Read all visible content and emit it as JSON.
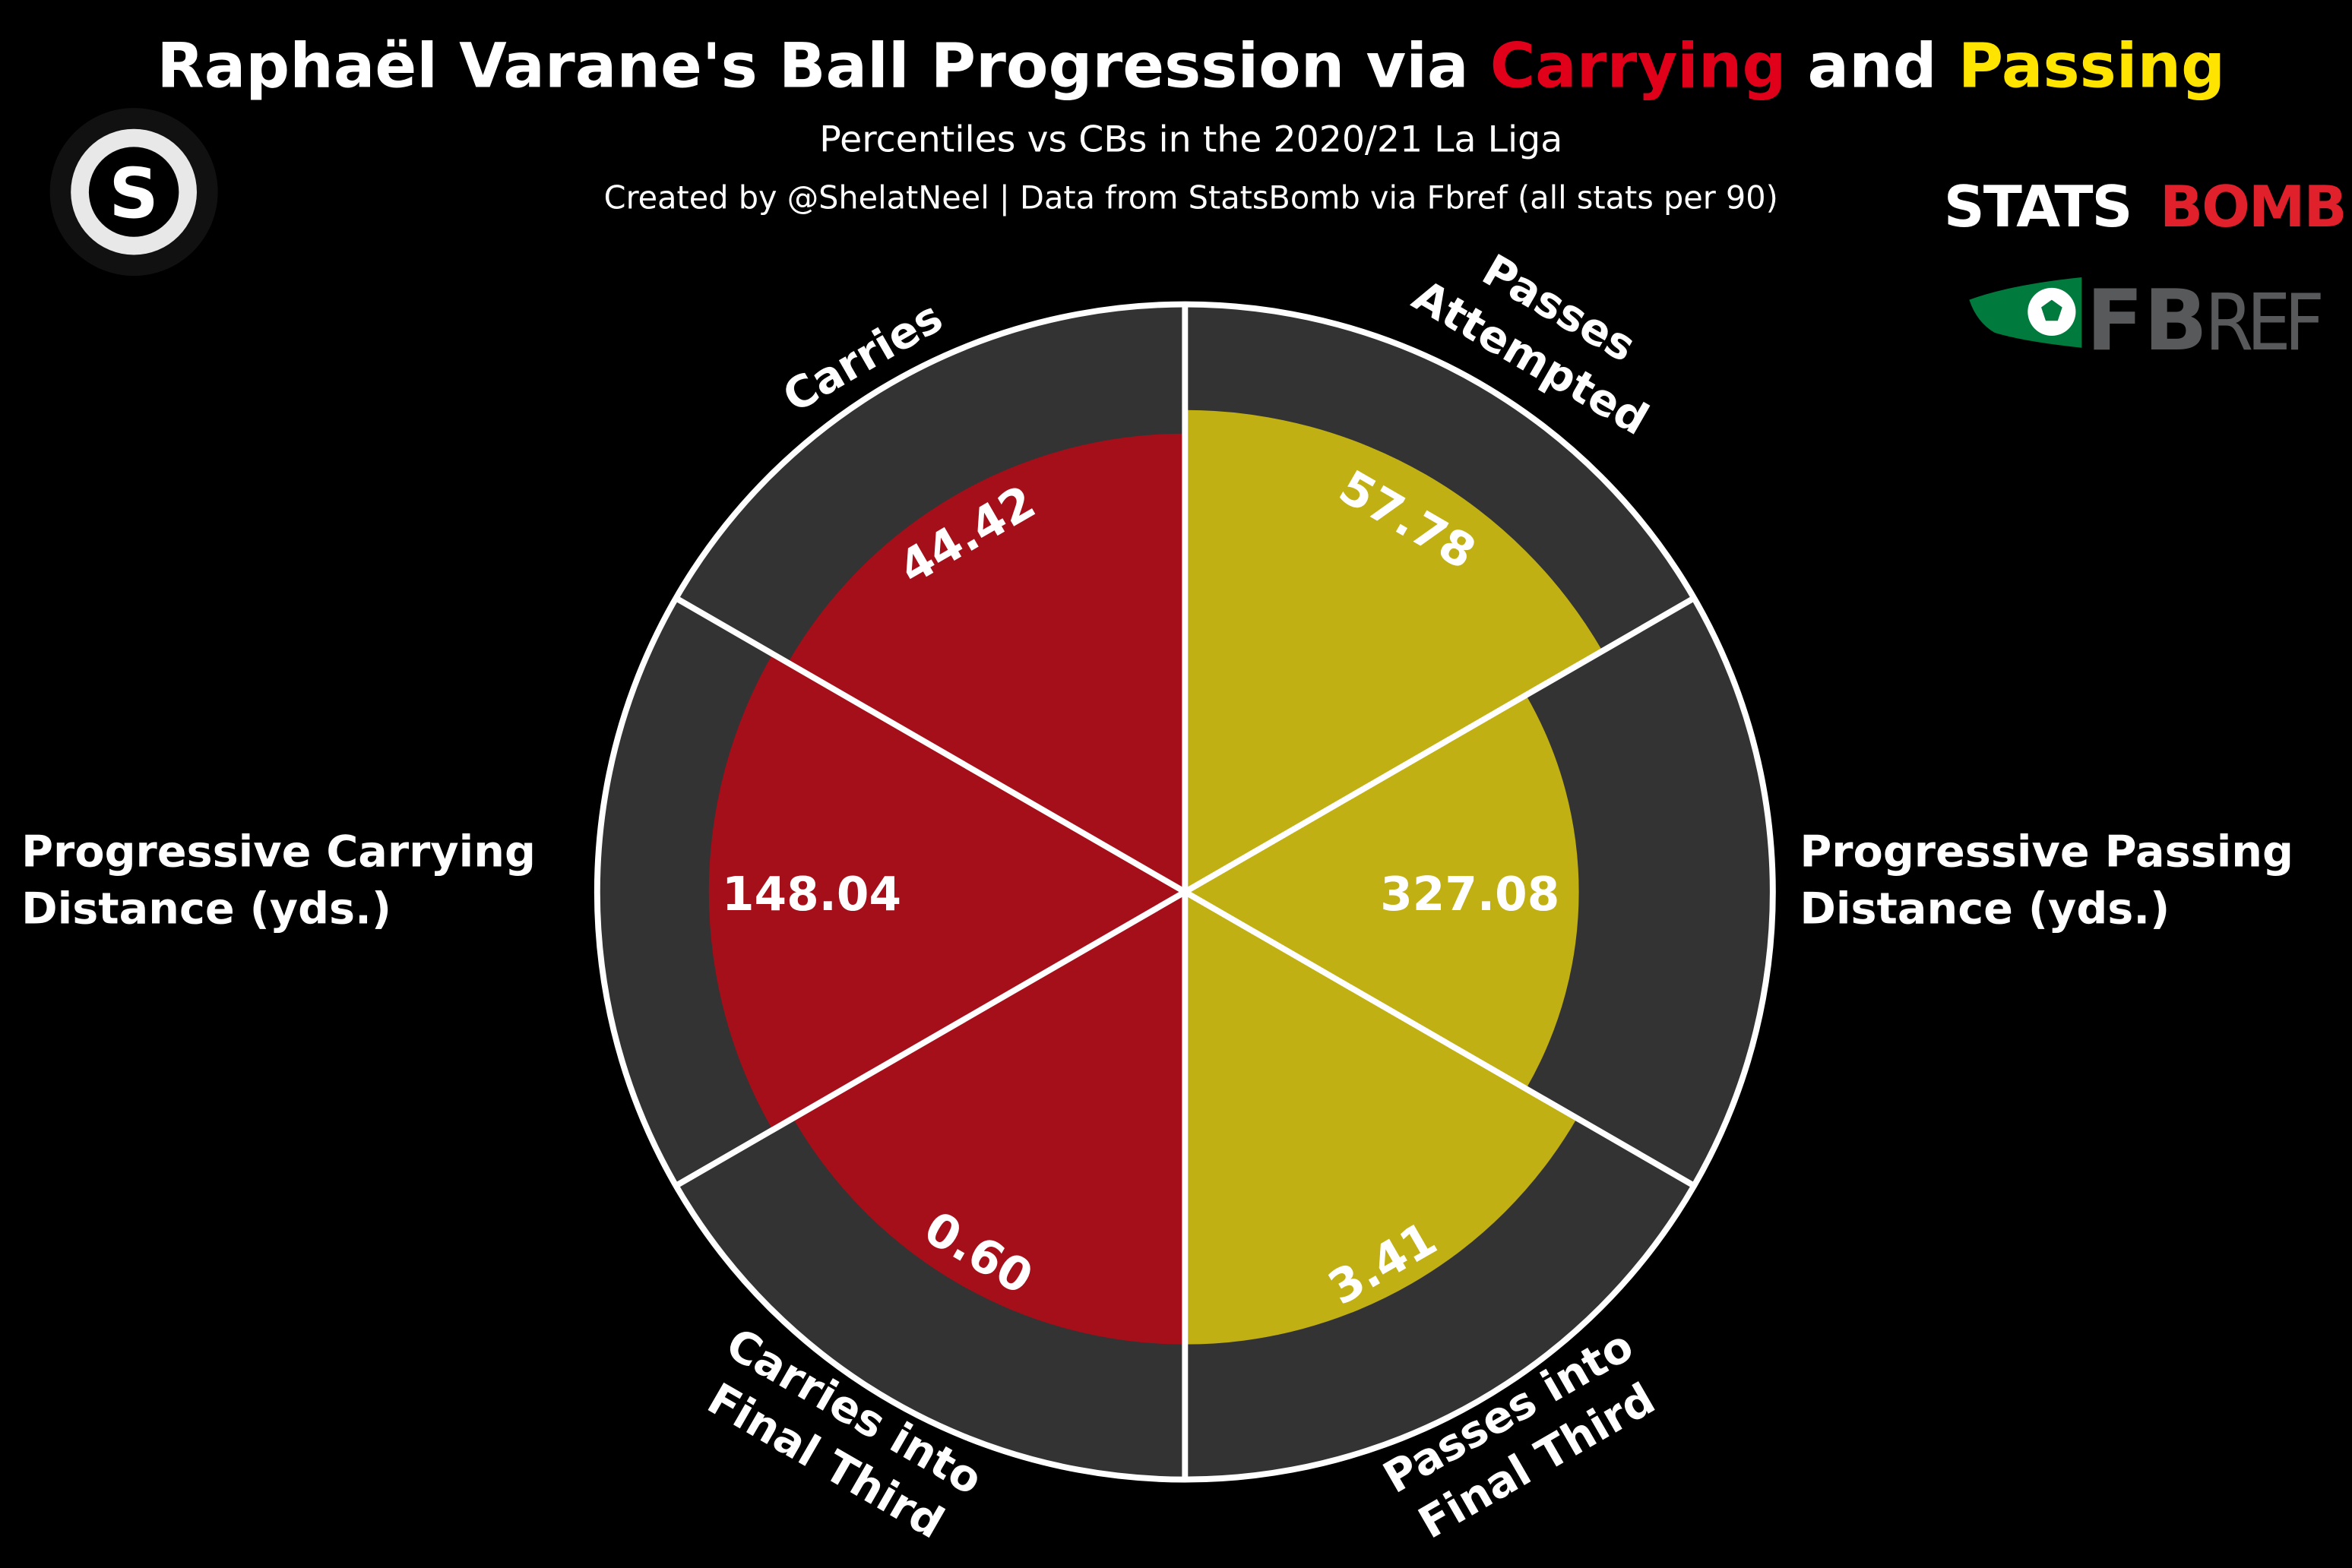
{
  "title": {
    "prefix": "Raphaël Varane's Ball Progression via ",
    "carrying": "Carrying",
    "and": " and ",
    "passing": "Passing"
  },
  "subtitle": "Percentiles vs CBs in the 2020/21 La Liga",
  "credit": "Created by @ShelatNeel | Data from StatsBomb via Fbref (all stats per 90)",
  "logos": {
    "author": "S",
    "statsbomb_left": "STATS",
    "statsbomb_right": "BOMB",
    "fbref_bold": "FB",
    "fbref_light": "REF"
  },
  "colors": {
    "carrying": "#a50f1a",
    "passing": "#c1b013",
    "title_carrying": "#e0001a",
    "title_passing": "#ffe400",
    "background_slice": "#333333",
    "background": "#000000"
  },
  "chart_data": {
    "type": "pie",
    "subtype": "radial-bar (pizza) chart",
    "radial_range": [
      0,
      100
    ],
    "slices": [
      {
        "category": [
          "Passes",
          "Attempted"
        ],
        "group": "Passing",
        "percentile": 82,
        "value_label": "57.78"
      },
      {
        "category": [
          "Progressive Passing",
          "Distance (yds.)"
        ],
        "group": "Passing",
        "percentile": 67,
        "value_label": "327.08"
      },
      {
        "category": [
          "Passes into",
          "Final Third"
        ],
        "group": "Passing",
        "percentile": 77,
        "value_label": "3.41"
      },
      {
        "category": [
          "Carries into",
          "Final Third"
        ],
        "group": "Carrying",
        "percentile": 77,
        "value_label": "0.60"
      },
      {
        "category": [
          "Progressive Carrying",
          "Distance (yds.)"
        ],
        "group": "Carrying",
        "percentile": 81,
        "value_label": "148.04"
      },
      {
        "category": [
          "Carries"
        ],
        "group": "Carrying",
        "percentile": 78,
        "value_label": "44.42"
      }
    ]
  }
}
